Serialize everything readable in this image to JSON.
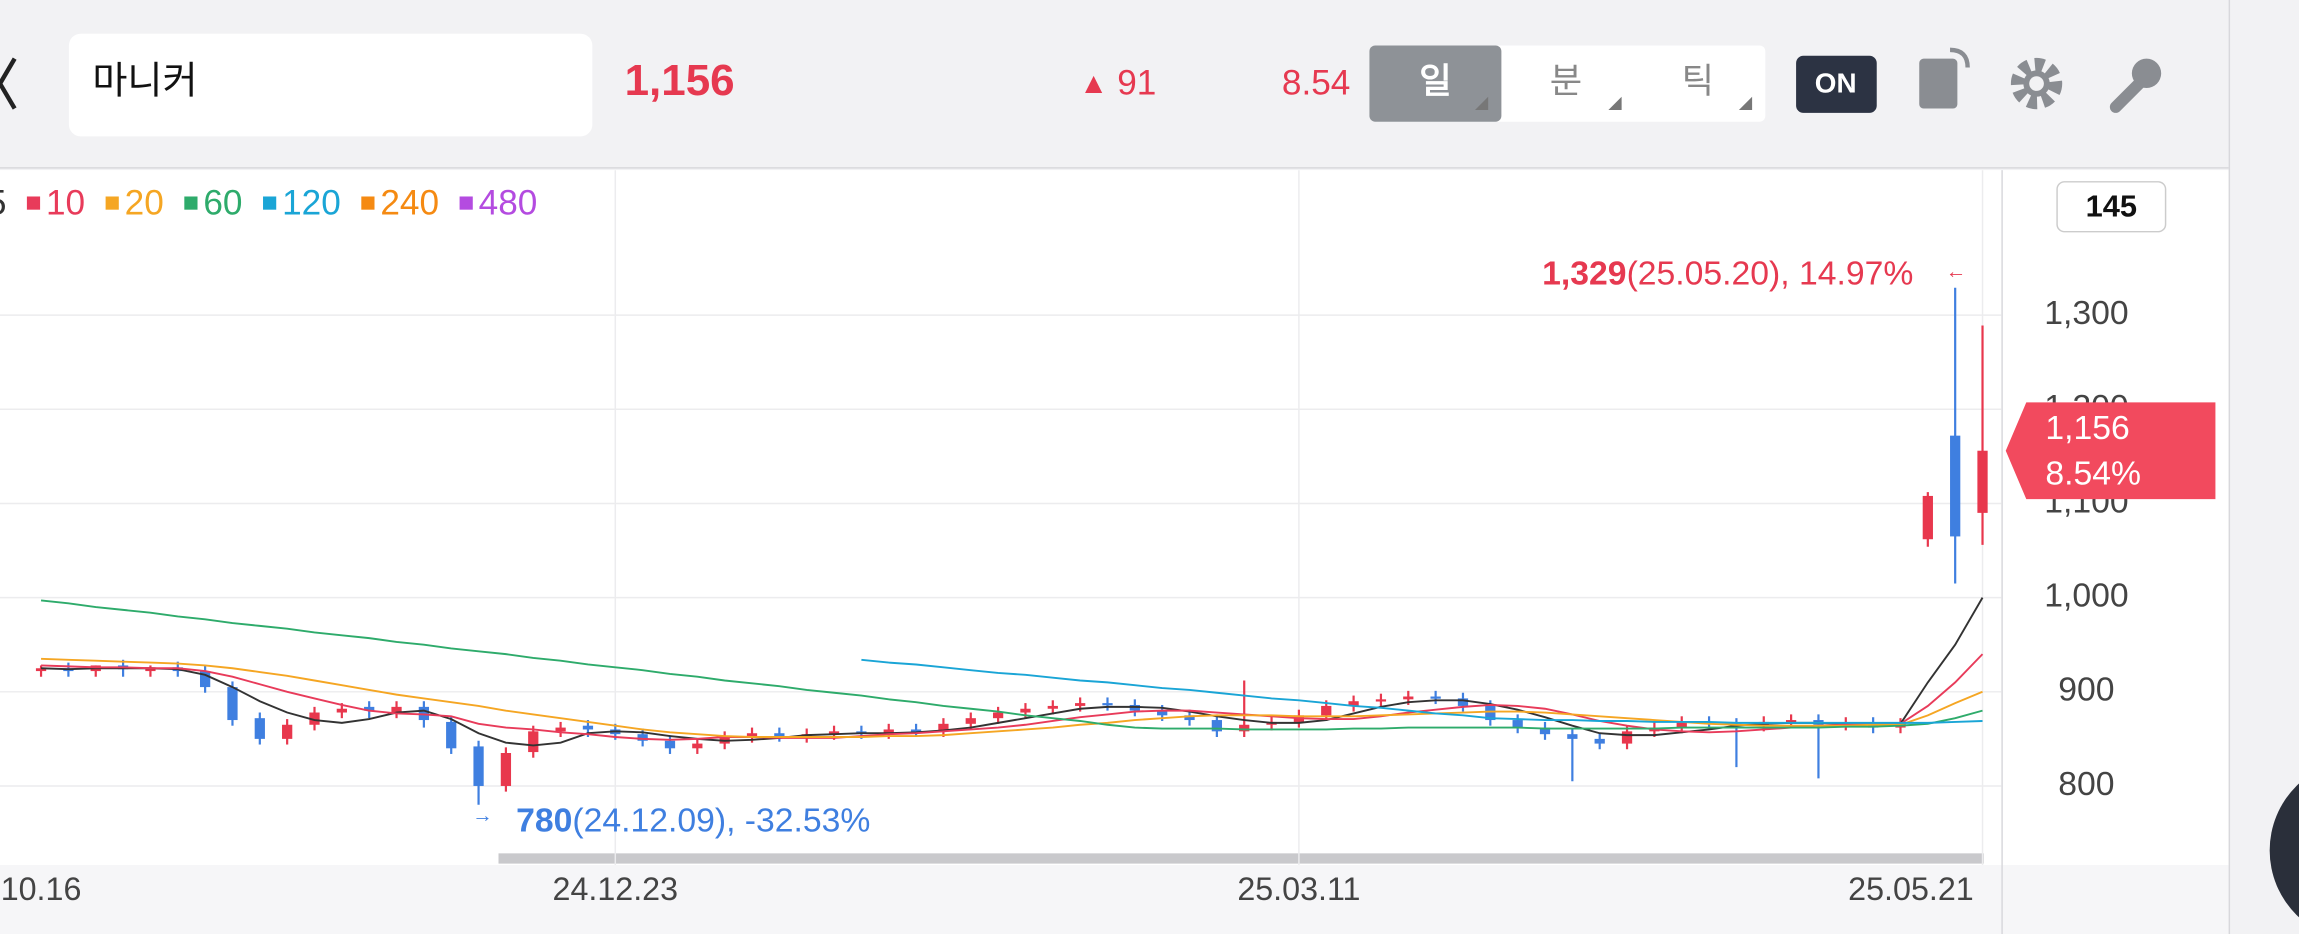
{
  "header": {
    "stock_name": "마니커",
    "price": "1,156",
    "change_arrow": "▲",
    "change": "91",
    "change_rate": "8.54",
    "tabs": [
      "일",
      "분",
      "틱"
    ],
    "toggle": "ON"
  },
  "chart_data": {
    "type": "candlestick",
    "categories": [
      "10.16",
      null,
      null,
      null,
      null,
      null,
      null,
      null,
      null,
      null,
      null,
      null,
      null,
      null,
      null,
      null,
      null,
      null,
      null,
      null,
      null,
      "24.12.23",
      null,
      null,
      null,
      null,
      null,
      null,
      null,
      null,
      null,
      null,
      null,
      null,
      null,
      null,
      null,
      null,
      null,
      null,
      null,
      null,
      null,
      null,
      null,
      null,
      "25.03.11",
      null,
      null,
      null,
      null,
      null,
      null,
      null,
      null,
      null,
      null,
      null,
      null,
      null,
      null,
      null,
      null,
      null,
      null,
      null,
      null,
      null,
      null,
      null,
      null,
      "25.05.21"
    ],
    "open": [
      922,
      925,
      922,
      928,
      922,
      926,
      922,
      905,
      872,
      850,
      865,
      878,
      884,
      878,
      884,
      868,
      842,
      800,
      836,
      858,
      864,
      860,
      855,
      848,
      840,
      845,
      852,
      856,
      852,
      855,
      858,
      856,
      860,
      858,
      866,
      872,
      878,
      882,
      885,
      888,
      886,
      880,
      875,
      870,
      858,
      865,
      868,
      875,
      885,
      890,
      892,
      895,
      893,
      885,
      870,
      862,
      855,
      850,
      845,
      858,
      862,
      868,
      866,
      864,
      868,
      870,
      865,
      867,
      862,
      1062,
      1172,
      1090
    ],
    "high": [
      928,
      931,
      928,
      934,
      928,
      932,
      928,
      911,
      878,
      871,
      884,
      888,
      890,
      890,
      890,
      874,
      848,
      841,
      864,
      868,
      870,
      866,
      861,
      854,
      851,
      858,
      862,
      862,
      861,
      864,
      864,
      866,
      866,
      872,
      878,
      884,
      888,
      891,
      894,
      894,
      892,
      886,
      881,
      876,
      912,
      874,
      881,
      891,
      896,
      898,
      901,
      901,
      899,
      891,
      876,
      868,
      861,
      856,
      864,
      868,
      874,
      874,
      872,
      874,
      876,
      876,
      873,
      873,
      872,
      1112,
      1329,
      1289
    ],
    "low": [
      916,
      916,
      916,
      916,
      916,
      916,
      899,
      864,
      844,
      844,
      859,
      872,
      872,
      872,
      862,
      834,
      780,
      794,
      830,
      852,
      852,
      849,
      842,
      834,
      834,
      839,
      846,
      847,
      846,
      849,
      850,
      850,
      852,
      852,
      860,
      866,
      872,
      876,
      879,
      880,
      874,
      869,
      864,
      852,
      852,
      859,
      862,
      869,
      879,
      884,
      886,
      887,
      879,
      864,
      856,
      849,
      805,
      839,
      839,
      852,
      856,
      860,
      820,
      858,
      862,
      808,
      859,
      856,
      856,
      1054,
      1015,
      1056
    ],
    "close": [
      925,
      922,
      928,
      924,
      926,
      922,
      905,
      870,
      850,
      865,
      878,
      882,
      880,
      884,
      870,
      840,
      800,
      835,
      858,
      862,
      860,
      855,
      848,
      840,
      845,
      852,
      856,
      853,
      855,
      858,
      856,
      860,
      858,
      866,
      872,
      878,
      882,
      885,
      888,
      886,
      880,
      875,
      870,
      858,
      865,
      868,
      875,
      885,
      890,
      892,
      895,
      893,
      885,
      870,
      862,
      855,
      850,
      845,
      858,
      862,
      868,
      866,
      864,
      868,
      870,
      865,
      867,
      862,
      866,
      1108,
      1065,
      1156
    ],
    "up_color": "#e8374d",
    "down_color": "#3f7fe0",
    "moving_averages": [
      {
        "name": "5",
        "color": "#333333",
        "values": [
          925,
          924,
          925,
          925,
          925,
          924,
          918,
          905,
          890,
          878,
          870,
          867,
          871,
          878,
          880,
          871,
          856,
          846,
          843,
          846,
          856,
          858,
          857,
          853,
          850,
          848,
          849,
          851,
          854,
          855,
          856,
          856,
          857,
          859,
          862,
          867,
          872,
          877,
          882,
          884,
          884,
          883,
          879,
          874,
          870,
          867,
          867,
          870,
          877,
          884,
          889,
          891,
          891,
          887,
          881,
          873,
          864,
          856,
          854,
          854,
          857,
          860,
          864,
          866,
          867,
          867,
          866,
          866,
          866,
          910,
          950,
          1000
        ]
      },
      {
        "name": "10",
        "color": "#e83b5a",
        "values": [
          928,
          927,
          926,
          926,
          925,
          925,
          922,
          916,
          908,
          900,
          893,
          886,
          880,
          877,
          876,
          874,
          866,
          862,
          860,
          857,
          855,
          852,
          850,
          849,
          850,
          852,
          852,
          851,
          851,
          851,
          853,
          855,
          856,
          858,
          860,
          862,
          865,
          869,
          873,
          876,
          879,
          880,
          880,
          878,
          876,
          874,
          872,
          871,
          871,
          874,
          878,
          881,
          884,
          886,
          885,
          882,
          876,
          869,
          864,
          860,
          858,
          857,
          858,
          860,
          862,
          864,
          865,
          866,
          866,
          885,
          910,
          940
        ]
      },
      {
        "name": "20",
        "color": "#f5a623",
        "values": [
          935,
          934,
          933,
          932,
          931,
          930,
          928,
          925,
          921,
          917,
          912,
          907,
          902,
          897,
          893,
          889,
          885,
          880,
          876,
          872,
          868,
          864,
          860,
          857,
          855,
          853,
          852,
          852,
          852,
          852,
          852,
          853,
          853,
          854,
          856,
          858,
          860,
          862,
          865,
          867,
          870,
          872,
          874,
          875,
          875,
          875,
          874,
          874,
          874,
          875,
          876,
          877,
          878,
          879,
          879,
          878,
          876,
          874,
          872,
          870,
          868,
          866,
          865,
          864,
          864,
          864,
          864,
          865,
          865,
          875,
          888,
          900
        ]
      },
      {
        "name": "60",
        "color": "#2eab6b",
        "values": [
          997,
          994,
          990,
          987,
          984,
          980,
          977,
          973,
          970,
          967,
          963,
          960,
          957,
          953,
          950,
          946,
          943,
          940,
          936,
          933,
          929,
          926,
          923,
          919,
          916,
          912,
          909,
          906,
          902,
          899,
          896,
          892,
          889,
          885,
          882,
          879,
          875,
          872,
          869,
          865,
          862,
          861,
          861,
          861,
          860,
          860,
          860,
          860,
          861,
          861,
          862,
          862,
          862,
          862,
          862,
          861,
          861,
          861,
          861,
          861,
          862,
          862,
          862,
          862,
          862,
          862,
          863,
          863,
          864,
          866,
          872,
          880
        ]
      },
      {
        "name": "120",
        "color": "#1aa5d6",
        "values": [
          null,
          null,
          null,
          null,
          null,
          null,
          null,
          null,
          null,
          null,
          null,
          null,
          null,
          null,
          null,
          null,
          null,
          null,
          null,
          null,
          null,
          null,
          null,
          null,
          null,
          null,
          null,
          null,
          null,
          null,
          934,
          931,
          929,
          926,
          923,
          920,
          918,
          915,
          912,
          910,
          907,
          904,
          902,
          899,
          896,
          893,
          891,
          888,
          885,
          883,
          880,
          877,
          875,
          872,
          871,
          870,
          870,
          869,
          869,
          868,
          868,
          868,
          867,
          867,
          867,
          867,
          867,
          867,
          867,
          867,
          868,
          869
        ]
      },
      {
        "name": "240",
        "color": "#f58a12",
        "values": [
          null,
          null,
          null,
          null,
          null,
          null,
          null,
          null,
          null,
          null,
          null,
          null,
          null,
          null,
          null,
          null,
          null,
          null,
          null,
          null,
          null,
          null,
          null,
          null,
          null,
          null,
          null,
          null,
          null,
          null,
          null,
          null,
          null,
          null,
          null,
          null,
          null,
          null,
          null,
          null,
          null,
          null,
          null,
          null,
          null,
          null,
          null,
          null,
          null,
          null,
          null,
          null,
          null,
          null,
          null,
          null,
          null,
          null,
          null,
          null,
          null,
          null,
          null,
          null,
          null,
          null,
          null,
          null,
          null,
          null,
          null,
          null
        ]
      },
      {
        "name": "480",
        "color": "#b44be0",
        "values": [
          null,
          null,
          null,
          null,
          null,
          null,
          null,
          null,
          null,
          null,
          null,
          null,
          null,
          null,
          null,
          null,
          null,
          null,
          null,
          null,
          null,
          null,
          null,
          null,
          null,
          null,
          null,
          null,
          null,
          null,
          null,
          null,
          null,
          null,
          null,
          null,
          null,
          null,
          null,
          null,
          null,
          null,
          null,
          null,
          null,
          null,
          null,
          null,
          null,
          null,
          null,
          null,
          null,
          null,
          null,
          null,
          null,
          null,
          null,
          null,
          null,
          null,
          null,
          null,
          null,
          null,
          null,
          null,
          null,
          null,
          null,
          null
        ]
      }
    ],
    "ylim": [
      716,
      1454
    ],
    "yticks": [
      800,
      900,
      {
        "value": 1000,
        "label": "1,000"
      },
      {
        "value": 1100,
        "label": "1,100"
      },
      {
        "value": 1200,
        "label": "1,200"
      },
      {
        "value": 1300,
        "label": "1,300"
      }
    ],
    "grid": true,
    "count_badge": "145",
    "current_price": {
      "value": 1156,
      "label": "1,156",
      "rate": "8.54%"
    },
    "annotations": [
      {
        "value": "1,329",
        "text": "(25.05.20), 14.97%",
        "arrow": "←"
      },
      {
        "value": "780",
        "text": "(24.12.09), -32.53%",
        "arrow": "→"
      }
    ]
  }
}
